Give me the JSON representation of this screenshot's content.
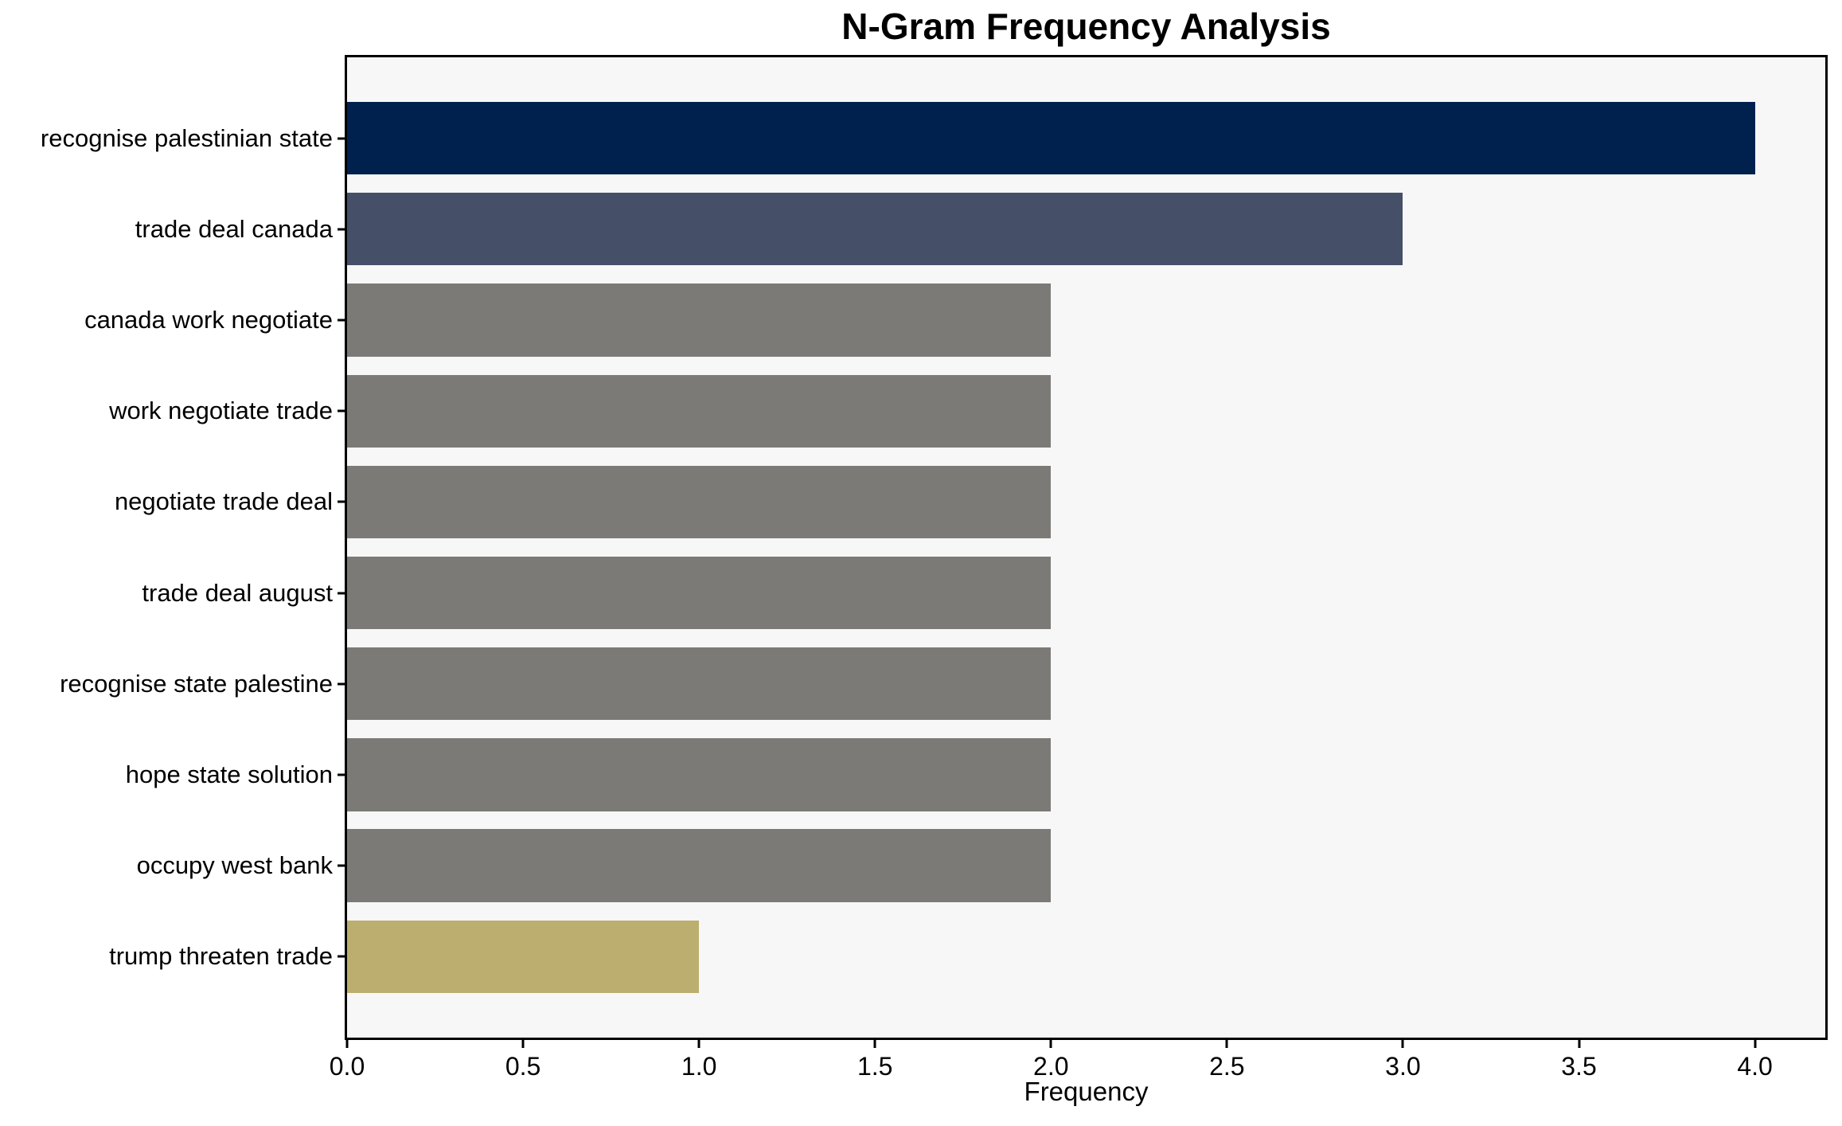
{
  "chart_data": {
    "type": "bar",
    "orientation": "horizontal",
    "title": "N-Gram Frequency Analysis",
    "xlabel": "Frequency",
    "ylabel": "",
    "categories": [
      "recognise palestinian state",
      "trade deal canada",
      "canada work negotiate",
      "work negotiate trade",
      "negotiate trade deal",
      "trade deal august",
      "recognise state palestine",
      "hope state solution",
      "occupy west bank",
      "trump threaten trade"
    ],
    "values": [
      4,
      3,
      2,
      2,
      2,
      2,
      2,
      2,
      2,
      1
    ],
    "bar_colors": [
      "#00204e",
      "#454f68",
      "#7b7a76",
      "#7b7a76",
      "#7b7a76",
      "#7b7a76",
      "#7b7a76",
      "#7b7a76",
      "#7b7a76",
      "#bcae6e"
    ],
    "x_ticks": [
      "0.0",
      "0.5",
      "1.0",
      "1.5",
      "2.0",
      "2.5",
      "3.0",
      "3.5",
      "4.0"
    ],
    "xlim": [
      0,
      4.2
    ],
    "grid": false,
    "legend": null,
    "plot_background": "#f7f7f7",
    "figure_background": "#ffffff",
    "spine_color": "#000000",
    "text_color": "#000000"
  }
}
